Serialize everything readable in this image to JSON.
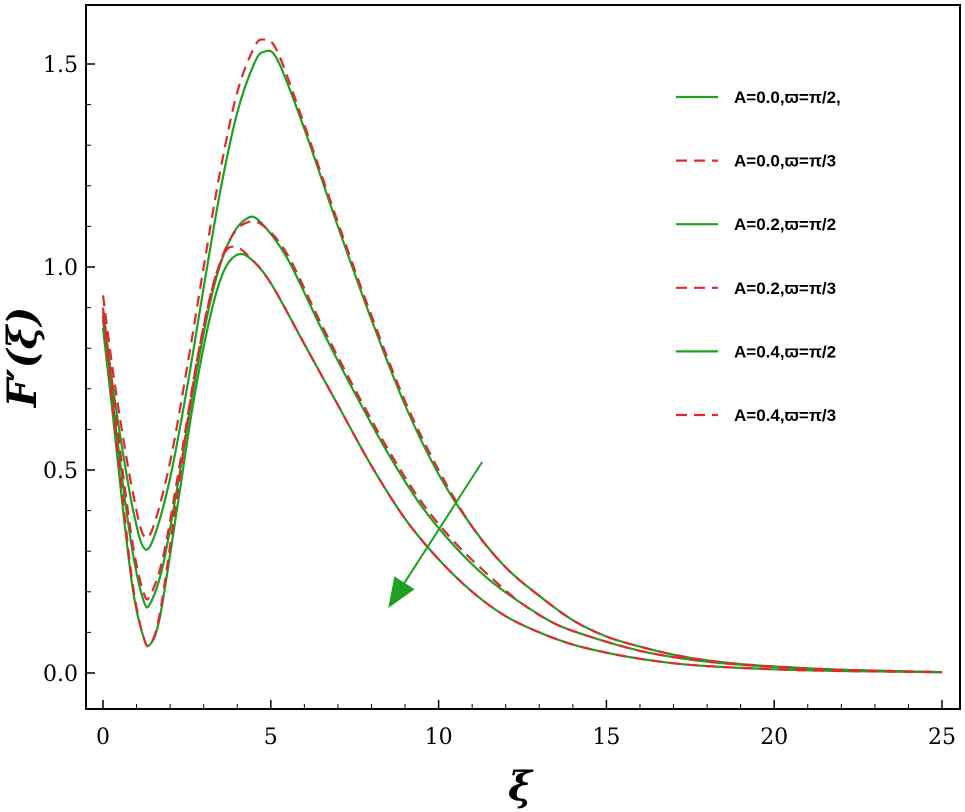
{
  "chart_data": {
    "type": "line",
    "title": "",
    "xlabel": "ξ",
    "ylabel": "F′(ξ)",
    "xlim": [
      0,
      25
    ],
    "ylim": [
      0,
      1.5
    ],
    "x_ticks": [
      0,
      5,
      10,
      15,
      20,
      25
    ],
    "x_tick_labels": [
      "0",
      "5",
      "10",
      "15",
      "20",
      "25"
    ],
    "y_ticks": [
      0,
      0.5,
      1,
      1.5
    ],
    "y_tick_labels": [
      "0.0",
      "0.5",
      "1.0",
      "1.5"
    ],
    "grid": false,
    "legend_position": "top-right",
    "series": [
      {
        "name": "A=0.0,ϖ=π/2,",
        "color": "#1fa020",
        "style": "solid",
        "points": [
          [
            0,
            0.89
          ],
          [
            0.3,
            0.7
          ],
          [
            0.6,
            0.54
          ],
          [
            0.9,
            0.4
          ],
          [
            1.2,
            0.31
          ],
          [
            1.5,
            0.33
          ],
          [
            2,
            0.48
          ],
          [
            2.5,
            0.7
          ],
          [
            3,
            0.95
          ],
          [
            3.5,
            1.19
          ],
          [
            4,
            1.38
          ],
          [
            4.5,
            1.5
          ],
          [
            4.8,
            1.53
          ],
          [
            5.2,
            1.51
          ],
          [
            6,
            1.34
          ],
          [
            7,
            1.1
          ],
          [
            8,
            0.87
          ],
          [
            9,
            0.66
          ],
          [
            10,
            0.49
          ],
          [
            11,
            0.36
          ],
          [
            12,
            0.26
          ],
          [
            13,
            0.19
          ],
          [
            14,
            0.13
          ],
          [
            15,
            0.09
          ],
          [
            16,
            0.065
          ],
          [
            17,
            0.045
          ],
          [
            18,
            0.031
          ],
          [
            19,
            0.022
          ],
          [
            20,
            0.016
          ],
          [
            22,
            0.008
          ],
          [
            25,
            0.002
          ]
        ]
      },
      {
        "name": "A=0.0,ϖ=π/3",
        "color": "#e0282e",
        "style": "dashed",
        "points": [
          [
            0,
            0.93
          ],
          [
            0.3,
            0.74
          ],
          [
            0.6,
            0.58
          ],
          [
            0.9,
            0.44
          ],
          [
            1.2,
            0.34
          ],
          [
            1.5,
            0.36
          ],
          [
            2,
            0.52
          ],
          [
            2.5,
            0.75
          ],
          [
            3,
            1.0
          ],
          [
            3.5,
            1.24
          ],
          [
            4,
            1.43
          ],
          [
            4.5,
            1.54
          ],
          [
            4.8,
            1.56
          ],
          [
            5.2,
            1.53
          ],
          [
            6,
            1.35
          ],
          [
            7,
            1.11
          ],
          [
            8,
            0.88
          ],
          [
            9,
            0.67
          ],
          [
            10,
            0.5
          ],
          [
            11,
            0.36
          ],
          [
            12,
            0.26
          ],
          [
            13,
            0.19
          ],
          [
            14,
            0.13
          ],
          [
            15,
            0.09
          ],
          [
            16,
            0.065
          ],
          [
            17,
            0.045
          ],
          [
            18,
            0.031
          ],
          [
            19,
            0.022
          ],
          [
            20,
            0.016
          ],
          [
            22,
            0.008
          ],
          [
            25,
            0.002
          ]
        ]
      },
      {
        "name": "A=0.2,ϖ=π/2",
        "color": "#1fa020",
        "style": "solid",
        "points": [
          [
            0,
            0.87
          ],
          [
            0.3,
            0.66
          ],
          [
            0.6,
            0.46
          ],
          [
            0.9,
            0.29
          ],
          [
            1.2,
            0.18
          ],
          [
            1.4,
            0.17
          ],
          [
            1.8,
            0.27
          ],
          [
            2.3,
            0.5
          ],
          [
            2.8,
            0.75
          ],
          [
            3.3,
            0.95
          ],
          [
            3.8,
            1.07
          ],
          [
            4.3,
            1.12
          ],
          [
            4.7,
            1.11
          ],
          [
            5.5,
            1.02
          ],
          [
            6.5,
            0.85
          ],
          [
            7.5,
            0.69
          ],
          [
            8.5,
            0.54
          ],
          [
            9.5,
            0.41
          ],
          [
            10.5,
            0.31
          ],
          [
            11.5,
            0.23
          ],
          [
            12.5,
            0.17
          ],
          [
            13.5,
            0.12
          ],
          [
            14.5,
            0.09
          ],
          [
            15.5,
            0.065
          ],
          [
            16.5,
            0.046
          ],
          [
            18,
            0.028
          ],
          [
            20,
            0.015
          ],
          [
            22,
            0.008
          ],
          [
            25,
            0.002
          ]
        ]
      },
      {
        "name": "A=0.2,ϖ=π/3",
        "color": "#e0282e",
        "style": "dashed",
        "points": [
          [
            0,
            0.9
          ],
          [
            0.3,
            0.69
          ],
          [
            0.6,
            0.49
          ],
          [
            0.9,
            0.31
          ],
          [
            1.2,
            0.2
          ],
          [
            1.4,
            0.19
          ],
          [
            1.8,
            0.29
          ],
          [
            2.3,
            0.52
          ],
          [
            2.8,
            0.77
          ],
          [
            3.3,
            0.96
          ],
          [
            3.8,
            1.07
          ],
          [
            4.3,
            1.11
          ],
          [
            4.8,
            1.1
          ],
          [
            5.5,
            1.03
          ],
          [
            6.5,
            0.86
          ],
          [
            7.5,
            0.7
          ],
          [
            8.5,
            0.55
          ],
          [
            9.5,
            0.42
          ],
          [
            10.5,
            0.32
          ],
          [
            11.5,
            0.24
          ],
          [
            12.5,
            0.17
          ],
          [
            13.5,
            0.12
          ],
          [
            14.5,
            0.09
          ],
          [
            15.5,
            0.065
          ],
          [
            16.5,
            0.046
          ],
          [
            18,
            0.028
          ],
          [
            20,
            0.015
          ],
          [
            22,
            0.008
          ],
          [
            25,
            0.002
          ]
        ]
      },
      {
        "name": "A=0.4,ϖ=π/2",
        "color": "#1fa020",
        "style": "solid",
        "points": [
          [
            0,
            0.85
          ],
          [
            0.3,
            0.63
          ],
          [
            0.6,
            0.4
          ],
          [
            0.9,
            0.2
          ],
          [
            1.2,
            0.09
          ],
          [
            1.4,
            0.07
          ],
          [
            1.7,
            0.14
          ],
          [
            2.2,
            0.4
          ],
          [
            2.7,
            0.67
          ],
          [
            3.2,
            0.88
          ],
          [
            3.6,
            0.99
          ],
          [
            4,
            1.03
          ],
          [
            4.4,
            1.02
          ],
          [
            5,
            0.96
          ],
          [
            6,
            0.81
          ],
          [
            7,
            0.66
          ],
          [
            8,
            0.51
          ],
          [
            9,
            0.38
          ],
          [
            10,
            0.28
          ],
          [
            11,
            0.2
          ],
          [
            12,
            0.14
          ],
          [
            13,
            0.1
          ],
          [
            14,
            0.07
          ],
          [
            15,
            0.05
          ],
          [
            16,
            0.035
          ],
          [
            17,
            0.024
          ],
          [
            18,
            0.017
          ],
          [
            20,
            0.009
          ],
          [
            22,
            0.005
          ],
          [
            25,
            0.002
          ]
        ]
      },
      {
        "name": "A=0.4,ϖ=π/3",
        "color": "#e0282e",
        "style": "dashed",
        "points": [
          [
            0,
            0.88
          ],
          [
            0.3,
            0.65
          ],
          [
            0.6,
            0.42
          ],
          [
            0.9,
            0.21
          ],
          [
            1.2,
            0.09
          ],
          [
            1.4,
            0.07
          ],
          [
            1.7,
            0.15
          ],
          [
            2.2,
            0.43
          ],
          [
            2.7,
            0.72
          ],
          [
            3.2,
            0.93
          ],
          [
            3.6,
            1.03
          ],
          [
            3.9,
            1.05
          ],
          [
            4.3,
            1.03
          ],
          [
            5,
            0.96
          ],
          [
            6,
            0.81
          ],
          [
            7,
            0.66
          ],
          [
            8,
            0.51
          ],
          [
            9,
            0.38
          ],
          [
            10,
            0.28
          ],
          [
            11,
            0.2
          ],
          [
            12,
            0.14
          ],
          [
            13,
            0.1
          ],
          [
            14,
            0.07
          ],
          [
            15,
            0.05
          ],
          [
            16,
            0.035
          ],
          [
            17,
            0.024
          ],
          [
            18,
            0.017
          ],
          [
            20,
            0.009
          ],
          [
            22,
            0.005
          ],
          [
            25,
            0.002
          ]
        ]
      }
    ],
    "annotation_arrow": {
      "from": [
        11.3,
        0.52
      ],
      "to": [
        8.5,
        0.16
      ],
      "color": "#1fa020",
      "meaning": "direction of increasing A"
    }
  }
}
